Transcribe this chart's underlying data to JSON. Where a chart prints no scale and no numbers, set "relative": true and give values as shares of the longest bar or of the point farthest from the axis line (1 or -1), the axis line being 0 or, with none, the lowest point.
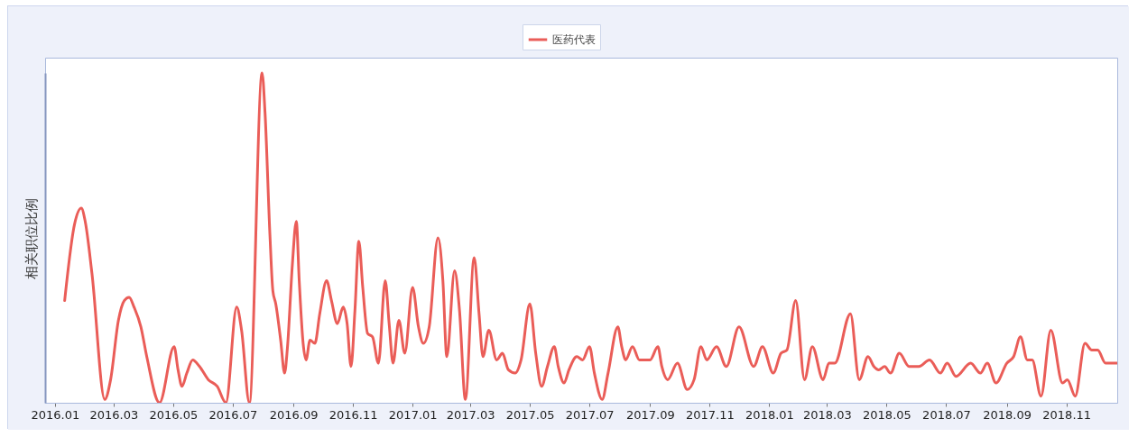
{
  "chart_data": {
    "type": "line",
    "ylabel": "相关职位比例",
    "relative": true,
    "legend": "top",
    "line_style": "solid",
    "xlim": [
      "2015-12-22",
      "2018-12-23"
    ],
    "xticks": [
      {
        "value": "2016-01",
        "label": "2016.01"
      },
      {
        "value": "2016-03",
        "label": "2016.03"
      },
      {
        "value": "2016-05",
        "label": "2016.05"
      },
      {
        "value": "2016-07",
        "label": "2016.07"
      },
      {
        "value": "2016-09",
        "label": "2016.09"
      },
      {
        "value": "2016-11",
        "label": "2016.11"
      },
      {
        "value": "2017-01",
        "label": "2017.01"
      },
      {
        "value": "2017-03",
        "label": "2017.03"
      },
      {
        "value": "2017-05",
        "label": "2017.05"
      },
      {
        "value": "2017-07",
        "label": "2017.07"
      },
      {
        "value": "2017-09",
        "label": "2017.09"
      },
      {
        "value": "2017-11",
        "label": "2017.11"
      },
      {
        "value": "2018-01",
        "label": "2018.01"
      },
      {
        "value": "2018-03",
        "label": "2018.03"
      },
      {
        "value": "2018-05",
        "label": "2018.05"
      },
      {
        "value": "2018-07",
        "label": "2018.07"
      },
      {
        "value": "2018-09",
        "label": "2018.09"
      },
      {
        "value": "2018-11",
        "label": "2018.11"
      }
    ],
    "x": [
      "2016-01-11",
      "2016-01-21",
      "2016-01-28",
      "2016-02-01",
      "2016-02-08",
      "2016-02-21",
      "2016-02-27",
      "2016-03-06",
      "2016-03-12",
      "2016-03-17",
      "2016-03-22",
      "2016-03-29",
      "2016-04-04",
      "2016-04-17",
      "2016-05-02",
      "2016-05-06",
      "2016-05-10",
      "2016-05-15",
      "2016-05-21",
      "2016-05-28",
      "2016-06-06",
      "2016-06-15",
      "2016-06-24",
      "2016-07-05",
      "2016-07-10",
      "2016-07-18",
      "2016-07-31",
      "2016-08-03",
      "2016-08-08",
      "2016-08-11",
      "2016-08-14",
      "2016-08-19",
      "2016-08-23",
      "2016-08-26",
      "2016-08-31",
      "2016-09-04",
      "2016-09-07",
      "2016-09-11",
      "2016-09-14",
      "2016-09-18",
      "2016-09-23",
      "2016-09-28",
      "2016-10-05",
      "2016-10-10",
      "2016-10-16",
      "2016-10-22",
      "2016-10-26",
      "2016-10-30",
      "2016-11-03",
      "2016-11-07",
      "2016-11-11",
      "2016-11-16",
      "2016-11-21",
      "2016-11-27",
      "2016-12-04",
      "2016-12-08",
      "2016-12-12",
      "2016-12-18",
      "2016-12-24",
      "2017-01-01",
      "2017-01-07",
      "2017-01-12",
      "2017-01-18",
      "2017-01-27",
      "2017-02-01",
      "2017-02-05",
      "2017-02-13",
      "2017-02-18",
      "2017-02-24",
      "2017-03-05",
      "2017-03-10",
      "2017-03-14",
      "2017-03-20",
      "2017-03-28",
      "2017-04-03",
      "2017-04-09",
      "2017-04-16",
      "2017-04-22",
      "2017-05-01",
      "2017-05-07",
      "2017-05-13",
      "2017-05-19",
      "2017-05-26",
      "2017-05-30",
      "2017-06-05",
      "2017-06-10",
      "2017-06-18",
      "2017-06-24",
      "2017-07-01",
      "2017-07-06",
      "2017-07-14",
      "2017-07-20",
      "2017-07-30",
      "2017-08-03",
      "2017-08-07",
      "2017-08-14",
      "2017-08-21",
      "2017-09-01",
      "2017-09-09",
      "2017-09-13",
      "2017-09-19",
      "2017-09-29",
      "2017-10-09",
      "2017-10-16",
      "2017-10-23",
      "2017-10-29",
      "2017-11-08",
      "2017-11-18",
      "2017-12-01",
      "2017-12-16",
      "2017-12-25",
      "2018-01-05",
      "2018-01-13",
      "2018-01-19",
      "2018-01-28",
      "2018-02-06",
      "2018-02-14",
      "2018-02-25",
      "2018-03-03",
      "2018-03-09",
      "2018-03-25",
      "2018-04-03",
      "2018-04-12",
      "2018-04-18",
      "2018-04-23",
      "2018-04-29",
      "2018-05-05",
      "2018-05-14",
      "2018-05-24",
      "2018-06-03",
      "2018-06-14",
      "2018-06-25",
      "2018-07-02",
      "2018-07-11",
      "2018-07-26",
      "2018-08-05",
      "2018-08-12",
      "2018-08-21",
      "2018-09-01",
      "2018-09-08",
      "2018-09-15",
      "2018-09-22",
      "2018-09-27",
      "2018-10-06",
      "2018-10-16",
      "2018-10-28",
      "2018-11-02",
      "2018-11-10",
      "2018-11-20",
      "2018-11-27",
      "2018-12-03",
      "2018-12-11",
      "2018-12-23"
    ],
    "series": [
      {
        "name": "医药代表",
        "color": "#ea5d58",
        "values": [
          0.31,
          0.54,
          0.59,
          0.55,
          0.39,
          0.01,
          0.07,
          0.25,
          0.31,
          0.32,
          0.29,
          0.23,
          0.14,
          0,
          0.17,
          0.1,
          0.05,
          0.09,
          0.13,
          0.11,
          0.07,
          0.05,
          0,
          0.29,
          0.22,
          0,
          1,
          0.88,
          0.51,
          0.34,
          0.3,
          0.19,
          0.09,
          0.17,
          0.42,
          0.55,
          0.37,
          0.18,
          0.13,
          0.19,
          0.18,
          0.27,
          0.37,
          0.31,
          0.24,
          0.29,
          0.24,
          0.11,
          0.28,
          0.49,
          0.35,
          0.21,
          0.2,
          0.12,
          0.37,
          0.24,
          0.12,
          0.25,
          0.15,
          0.35,
          0.23,
          0.18,
          0.23,
          0.5,
          0.37,
          0.14,
          0.4,
          0.28,
          0.01,
          0.44,
          0.27,
          0.14,
          0.22,
          0.13,
          0.15,
          0.1,
          0.09,
          0.13,
          0.3,
          0.15,
          0.05,
          0.11,
          0.17,
          0.11,
          0.06,
          0.1,
          0.14,
          0.13,
          0.17,
          0.09,
          0.01,
          0.09,
          0.23,
          0.17,
          0.13,
          0.17,
          0.13,
          0.13,
          0.17,
          0.11,
          0.07,
          0.12,
          0.04,
          0.07,
          0.17,
          0.13,
          0.17,
          0.11,
          0.23,
          0.11,
          0.17,
          0.09,
          0.15,
          0.16,
          0.31,
          0.07,
          0.17,
          0.07,
          0.12,
          0.12,
          0.27,
          0.07,
          0.14,
          0.11,
          0.1,
          0.11,
          0.09,
          0.15,
          0.11,
          0.11,
          0.13,
          0.09,
          0.12,
          0.08,
          0.12,
          0.09,
          0.12,
          0.06,
          0.12,
          0.14,
          0.2,
          0.13,
          0.13,
          0.02,
          0.22,
          0.06,
          0.07,
          0.02,
          0.18,
          0.16,
          0.16,
          0.12,
          0.12
        ]
      }
    ]
  }
}
